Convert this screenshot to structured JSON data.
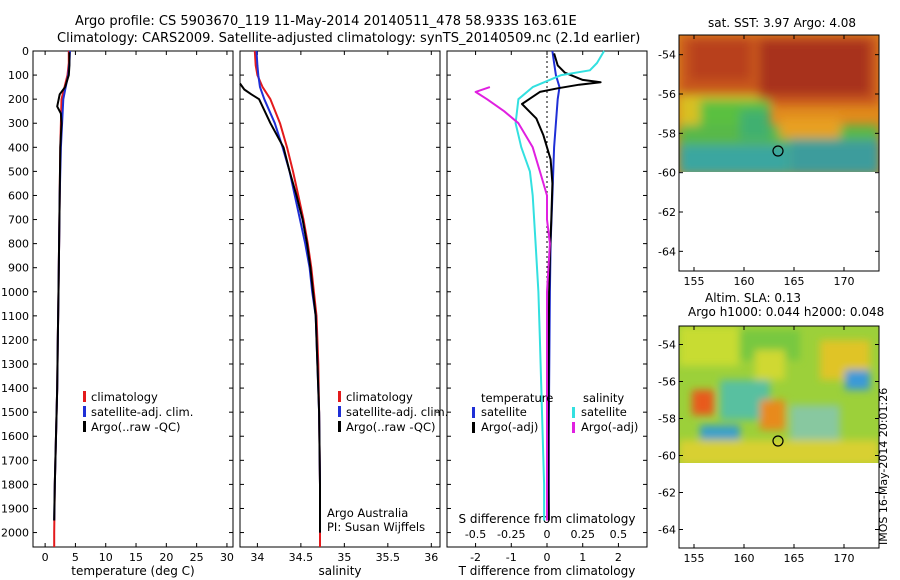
{
  "header": {
    "line1": "Argo profile: CS 5903670_119 11-May-2014 20140511_478 58.933S 163.61E",
    "line2": "Climatology: CARS2009. Satellite-adjusted climatology: synTS_20140509.nc (2.1d earlier)"
  },
  "side_stamp": "IMOS 16-May-2014 20:01:26",
  "credit": {
    "line1": "Argo Australia",
    "line2": "PI: Susan Wijffels"
  },
  "colors": {
    "climatology": "#e31a1c",
    "satellite": "#1f2fd6",
    "argo": "#000000",
    "sat_salinity": "#33e0e0",
    "argo_salinity": "#e020e0"
  },
  "chart_data": [
    {
      "type": "line",
      "title": "",
      "xlabel": "temperature (deg C)",
      "ylabel": "",
      "xlim": [
        -2,
        31
      ],
      "ylim": [
        2060,
        0
      ],
      "x_ticks": [
        "0",
        "5",
        "10",
        "15",
        "20",
        "25",
        "30"
      ],
      "y_ticks": [
        "0",
        "100",
        "200",
        "300",
        "400",
        "500",
        "600",
        "700",
        "800",
        "900",
        "1000",
        "1100",
        "1200",
        "1300",
        "1400",
        "1500",
        "1600",
        "1700",
        "1800",
        "1900",
        "2000"
      ],
      "legend": [
        "climatology",
        "satellite-adj. clim.",
        "Argo(..raw -QC)"
      ],
      "series": [
        {
          "name": "climatology",
          "points": [
            [
              3.9,
              0
            ],
            [
              3.9,
              50
            ],
            [
              3.7,
              100
            ],
            [
              3.2,
              150
            ],
            [
              2.7,
              200
            ],
            [
              2.6,
              300
            ],
            [
              2.5,
              400
            ],
            [
              2.4,
              600
            ],
            [
              2.3,
              800
            ],
            [
              2.2,
              1000
            ],
            [
              2.1,
              1200
            ],
            [
              2.0,
              1400
            ],
            [
              1.8,
              1600
            ],
            [
              1.6,
              1800
            ],
            [
              1.5,
              2000
            ],
            [
              1.5,
              2060
            ]
          ]
        },
        {
          "name": "satellite-adj. clim.",
          "points": [
            [
              4.1,
              0
            ],
            [
              4.0,
              50
            ],
            [
              3.8,
              100
            ],
            [
              3.4,
              150
            ],
            [
              3.0,
              200
            ],
            [
              2.8,
              300
            ],
            [
              2.6,
              400
            ],
            [
              2.4,
              600
            ],
            [
              2.3,
              800
            ],
            [
              2.2,
              1000
            ],
            [
              2.1,
              1200
            ],
            [
              2.0,
              1400
            ],
            [
              1.8,
              1600
            ],
            [
              1.6,
              1800
            ],
            [
              1.5,
              1950
            ]
          ]
        },
        {
          "name": "Argo(..raw -QC)",
          "points": [
            [
              4.0,
              5
            ],
            [
              4.0,
              60
            ],
            [
              3.9,
              100
            ],
            [
              3.3,
              150
            ],
            [
              2.4,
              180
            ],
            [
              2.0,
              230
            ],
            [
              2.6,
              260
            ],
            [
              2.7,
              300
            ],
            [
              2.5,
              400
            ],
            [
              2.4,
              600
            ],
            [
              2.3,
              800
            ],
            [
              2.2,
              1000
            ],
            [
              2.1,
              1200
            ],
            [
              2.0,
              1400
            ],
            [
              1.8,
              1600
            ],
            [
              1.6,
              1800
            ],
            [
              1.5,
              1950
            ]
          ]
        }
      ]
    },
    {
      "type": "line",
      "title": "",
      "xlabel": "salinity",
      "ylabel": "",
      "xlim": [
        33.8,
        36.1
      ],
      "ylim": [
        2060,
        0
      ],
      "x_ticks": [
        "34",
        "34.5",
        "35",
        "35.5",
        "36"
      ],
      "legend": [
        "climatology",
        "satellite-adj. clim.",
        "Argo(..raw -QC)"
      ],
      "series": [
        {
          "name": "climatology",
          "points": [
            [
              33.97,
              0
            ],
            [
              33.98,
              60
            ],
            [
              34.0,
              100
            ],
            [
              34.06,
              150
            ],
            [
              34.15,
              200
            ],
            [
              34.26,
              300
            ],
            [
              34.34,
              400
            ],
            [
              34.41,
              500
            ],
            [
              34.47,
              600
            ],
            [
              34.53,
              700
            ],
            [
              34.58,
              800
            ],
            [
              34.62,
              900
            ],
            [
              34.65,
              1000
            ],
            [
              34.68,
              1100
            ],
            [
              34.7,
              1300
            ],
            [
              34.71,
              1500
            ],
            [
              34.72,
              1800
            ],
            [
              34.72,
              2060
            ]
          ]
        },
        {
          "name": "satellite-adj. clim.",
          "points": [
            [
              33.99,
              0
            ],
            [
              34.0,
              60
            ],
            [
              34.01,
              100
            ],
            [
              34.03,
              150
            ],
            [
              34.08,
              200
            ],
            [
              34.2,
              300
            ],
            [
              34.29,
              400
            ],
            [
              34.37,
              500
            ],
            [
              34.43,
              600
            ],
            [
              34.49,
              700
            ],
            [
              34.55,
              800
            ],
            [
              34.6,
              900
            ],
            [
              34.63,
              1000
            ],
            [
              34.67,
              1100
            ],
            [
              34.69,
              1300
            ],
            [
              34.71,
              1500
            ],
            [
              34.72,
              1800
            ],
            [
              34.72,
              2000
            ]
          ]
        },
        {
          "name": "Argo(..raw -QC)",
          "points": [
            [
              33.8,
              135
            ],
            [
              33.85,
              160
            ],
            [
              33.93,
              180
            ],
            [
              34.02,
              200
            ],
            [
              34.15,
              300
            ],
            [
              34.3,
              400
            ],
            [
              34.37,
              500
            ],
            [
              34.45,
              600
            ],
            [
              34.52,
              700
            ],
            [
              34.57,
              800
            ],
            [
              34.61,
              900
            ],
            [
              34.64,
              1000
            ],
            [
              34.67,
              1100
            ],
            [
              34.69,
              1300
            ],
            [
              34.71,
              1500
            ],
            [
              34.72,
              1800
            ],
            [
              34.72,
              2000
            ]
          ]
        }
      ]
    },
    {
      "type": "line",
      "title": "",
      "xlabel": "T difference from climatology",
      "secondary_xlabel": "S difference from climatology",
      "ylabel": "",
      "xlim": [
        -2.8,
        2.8
      ],
      "ylim": [
        2060,
        0
      ],
      "x_ticks": [
        "-2",
        "-1",
        "0",
        "1",
        "2"
      ],
      "secondary_x_ticks": [
        "-0.5",
        "-0.25",
        "0",
        "0.25",
        "0.5"
      ],
      "legend_groups": {
        "temperature": [
          "satellite",
          "Argo(-adj)"
        ],
        "salinity": [
          "satellite",
          "Argo(-adj)"
        ]
      },
      "series": [
        {
          "name": "temperature satellite",
          "points": [
            [
              0.15,
              0
            ],
            [
              0.2,
              50
            ],
            [
              0.25,
              100
            ],
            [
              0.35,
              150
            ],
            [
              0.3,
              200
            ],
            [
              0.25,
              300
            ],
            [
              0.2,
              400
            ],
            [
              0.15,
              600
            ],
            [
              0.1,
              800
            ],
            [
              0.08,
              1000
            ],
            [
              0.07,
              1200
            ],
            [
              0.06,
              1400
            ],
            [
              0.05,
              1600
            ],
            [
              0.05,
              1800
            ],
            [
              0.05,
              1950
            ]
          ]
        },
        {
          "name": "temperature Argo(-adj)",
          "points": [
            [
              0.2,
              10
            ],
            [
              0.3,
              60
            ],
            [
              0.5,
              90
            ],
            [
              1.0,
              120
            ],
            [
              1.5,
              130
            ],
            [
              0.9,
              140
            ],
            [
              0.3,
              155
            ],
            [
              -0.2,
              170
            ],
            [
              -0.5,
              200
            ],
            [
              -0.7,
              220
            ],
            [
              -0.5,
              250
            ],
            [
              -0.3,
              280
            ],
            [
              -0.1,
              350
            ],
            [
              0.1,
              450
            ],
            [
              0.15,
              550
            ],
            [
              0.12,
              700
            ],
            [
              0.08,
              850
            ],
            [
              0.06,
              1000
            ],
            [
              0.05,
              1200
            ],
            [
              0.04,
              1500
            ],
            [
              0.04,
              1800
            ],
            [
              0.05,
              1950
            ]
          ]
        },
        {
          "name": "salinity satellite",
          "points": [
            [
              0.4,
              0
            ],
            [
              0.35,
              50
            ],
            [
              0.3,
              80
            ],
            [
              0.1,
              100
            ],
            [
              -0.1,
              150
            ],
            [
              -0.2,
              200
            ],
            [
              -0.22,
              300
            ],
            [
              -0.18,
              400
            ],
            [
              -0.12,
              500
            ],
            [
              -0.1,
              600
            ],
            [
              -0.08,
              800
            ],
            [
              -0.06,
              1000
            ],
            [
              -0.05,
              1200
            ],
            [
              -0.04,
              1400
            ],
            [
              -0.03,
              1600
            ],
            [
              -0.02,
              1800
            ],
            [
              -0.02,
              1950
            ]
          ]
        },
        {
          "name": "salinity Argo(-adj)",
          "points": [
            [
              -0.4,
              150
            ],
            [
              -0.5,
              170
            ],
            [
              -0.42,
              200
            ],
            [
              -0.3,
              250
            ],
            [
              -0.2,
              300
            ],
            [
              -0.1,
              400
            ],
            [
              -0.05,
              500
            ],
            [
              0.0,
              600
            ],
            [
              0.0,
              700
            ],
            [
              0.02,
              800
            ],
            [
              0.0,
              1000
            ],
            [
              0.0,
              1200
            ],
            [
              0.0,
              1400
            ],
            [
              0.0,
              1600
            ],
            [
              0.0,
              1800
            ],
            [
              0.0,
              1950
            ]
          ]
        }
      ]
    },
    {
      "type": "heatmap",
      "title": "sat. SST: 3.97 Argo: 4.08",
      "xlim": [
        153.5,
        173.5
      ],
      "ylim": [
        -65,
        -53
      ],
      "x_ticks": [
        "155",
        "160",
        "165",
        "170"
      ],
      "y_ticks": [
        "-54",
        "-56",
        "-58",
        "-60",
        "-62",
        "-64"
      ],
      "marker": {
        "lon": 163.61,
        "lat": -58.933
      }
    },
    {
      "type": "heatmap",
      "title": "Altim. SLA: 0.13",
      "subtitle": "Argo h1000: 0.044 h2000: 0.048",
      "xlim": [
        153.5,
        173.5
      ],
      "ylim": [
        -65,
        -53
      ],
      "x_ticks": [
        "155",
        "160",
        "165",
        "170"
      ],
      "y_ticks": [
        "-54",
        "-56",
        "-58",
        "-60",
        "-62",
        "-64"
      ],
      "marker": {
        "lon": 163.61,
        "lat": -58.933
      }
    }
  ]
}
